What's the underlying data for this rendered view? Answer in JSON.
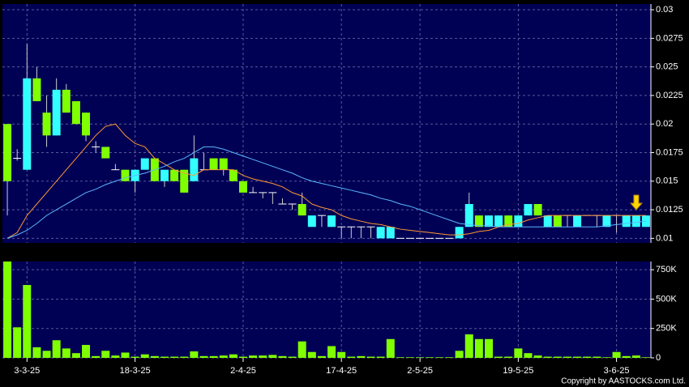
{
  "chart_data": [
    {
      "type": "candlestick",
      "categories": [
        null,
        null,
        "3-3-25",
        null,
        null,
        null,
        null,
        null,
        null,
        null,
        null,
        null,
        null,
        "18-3-25",
        null,
        null,
        null,
        null,
        null,
        null,
        null,
        null,
        null,
        null,
        "2-4-25",
        null,
        null,
        null,
        null,
        null,
        null,
        null,
        null,
        null,
        "17-4-25",
        null,
        null,
        null,
        null,
        null,
        null,
        null,
        "2-5-25",
        null,
        null,
        null,
        null,
        null,
        null,
        null,
        null,
        null,
        "19-5-25",
        null,
        null,
        null,
        null,
        null,
        null,
        null,
        null,
        null,
        "3-6-25",
        null,
        null,
        null
      ],
      "open": [
        0.02,
        0.017,
        0.016,
        0.024,
        0.021,
        0.019,
        0.023,
        0.022,
        0.021,
        0.018,
        0.018,
        0.016,
        0.016,
        0.015,
        0.016,
        0.017,
        0.015,
        0.016,
        0.016,
        0.015,
        0.016,
        0.017,
        0.017,
        0.016,
        0.015,
        0.014,
        0.014,
        0.014,
        0.013,
        0.013,
        0.013,
        0.011,
        0.012,
        0.011,
        0.011,
        0.011,
        0.011,
        0.011,
        0.01,
        0.01,
        0.01,
        0.01,
        0.01,
        0.01,
        0.01,
        0.01,
        0.01,
        0.011,
        0.012,
        0.011,
        0.011,
        0.012,
        0.011,
        0.012,
        0.013,
        0.011,
        0.012,
        0.012,
        0.011,
        0.012,
        0.012,
        0.011,
        0.012,
        0.011,
        0.011,
        0.011
      ],
      "high": [
        0.02,
        0.0178,
        0.027,
        0.025,
        0.0225,
        0.024,
        0.0235,
        0.022,
        0.021,
        0.0185,
        0.018,
        0.0165,
        0.016,
        0.016,
        0.017,
        0.017,
        0.016,
        0.016,
        0.016,
        0.019,
        0.0175,
        0.017,
        0.017,
        0.016,
        0.015,
        0.0145,
        0.014,
        0.014,
        0.0135,
        0.013,
        0.014,
        0.012,
        0.012,
        0.012,
        0.011,
        0.011,
        0.011,
        0.011,
        0.011,
        0.011,
        0.01,
        0.01,
        0.01,
        0.01,
        0.01,
        0.01,
        0.011,
        0.014,
        0.012,
        0.012,
        0.012,
        0.012,
        0.012,
        0.013,
        0.013,
        0.012,
        0.012,
        0.012,
        0.012,
        0.012,
        0.012,
        0.012,
        0.012,
        0.012,
        0.012,
        0.012
      ],
      "low": [
        0.012,
        0.0168,
        0.016,
        0.022,
        0.018,
        0.019,
        0.021,
        0.02,
        0.0185,
        0.0175,
        0.017,
        0.016,
        0.015,
        0.014,
        0.016,
        0.015,
        0.0145,
        0.015,
        0.014,
        0.015,
        0.016,
        0.016,
        0.0155,
        0.015,
        0.014,
        0.014,
        0.0135,
        0.013,
        0.013,
        0.0125,
        0.012,
        0.011,
        0.011,
        0.011,
        0.01,
        0.01,
        0.01,
        0.01,
        0.01,
        0.01,
        0.01,
        0.01,
        0.01,
        0.01,
        0.01,
        0.01,
        0.01,
        0.011,
        0.011,
        0.011,
        0.011,
        0.011,
        0.011,
        0.012,
        0.012,
        0.011,
        0.011,
        0.011,
        0.011,
        0.012,
        0.011,
        0.011,
        0.0105,
        0.011,
        0.011,
        0.011
      ],
      "close": [
        0.015,
        0.017,
        0.024,
        0.022,
        0.019,
        0.023,
        0.021,
        0.02,
        0.019,
        0.018,
        0.017,
        0.016,
        0.015,
        0.016,
        0.017,
        0.015,
        0.016,
        0.015,
        0.014,
        0.017,
        0.016,
        0.016,
        0.016,
        0.015,
        0.014,
        0.014,
        0.014,
        0.014,
        0.013,
        0.013,
        0.012,
        0.012,
        0.012,
        0.012,
        0.011,
        0.011,
        0.011,
        0.011,
        0.011,
        0.011,
        0.01,
        0.01,
        0.01,
        0.01,
        0.01,
        0.01,
        0.011,
        0.013,
        0.011,
        0.012,
        0.012,
        0.011,
        0.012,
        0.013,
        0.012,
        0.012,
        0.011,
        0.012,
        0.012,
        0.012,
        0.012,
        0.012,
        0.012,
        0.012,
        0.012,
        0.012
      ],
      "up_color": "#33ffff",
      "down_color": "#80ff00",
      "overlays": [
        {
          "color": "#ff9933",
          "values": [
            0.01,
            0.0105,
            0.012,
            0.013,
            0.014,
            0.015,
            0.016,
            0.017,
            0.018,
            0.019,
            0.0198,
            0.02,
            0.019,
            0.0183,
            0.018,
            0.017,
            0.0165,
            0.016,
            0.0157,
            0.0155,
            0.016,
            0.016,
            0.016,
            0.016,
            0.0155,
            0.0152,
            0.015,
            0.0148,
            0.0145,
            0.014,
            0.0137,
            0.013,
            0.0127,
            0.0125,
            0.012,
            0.0117,
            0.0115,
            0.0113,
            0.0112,
            0.011,
            0.0108,
            0.0107,
            0.0106,
            0.0105,
            0.0104,
            0.0103,
            0.0103,
            0.0104,
            0.0106,
            0.0107,
            0.011,
            0.0112,
            0.0113,
            0.0116,
            0.0118,
            0.012,
            0.012,
            0.012,
            0.012,
            0.012,
            0.012,
            0.012,
            0.012,
            0.012,
            0.012,
            0.012
          ]
        },
        {
          "color": "#5cb8ff",
          "values": [
            0.01,
            0.0103,
            0.0107,
            0.0113,
            0.012,
            0.0125,
            0.013,
            0.0135,
            0.014,
            0.0143,
            0.0147,
            0.015,
            0.0153,
            0.0155,
            0.0157,
            0.016,
            0.0163,
            0.0167,
            0.017,
            0.0175,
            0.018,
            0.018,
            0.0178,
            0.0175,
            0.0172,
            0.0169,
            0.0166,
            0.0163,
            0.016,
            0.0157,
            0.0153,
            0.015,
            0.0148,
            0.0146,
            0.0144,
            0.0142,
            0.014,
            0.0138,
            0.0135,
            0.0133,
            0.013,
            0.0128,
            0.0125,
            0.0122,
            0.0119,
            0.0116,
            0.0113,
            0.0112,
            0.0111,
            0.0111,
            0.011,
            0.011,
            0.011,
            0.011,
            0.011,
            0.011,
            0.011,
            0.011,
            0.011,
            0.011,
            0.011,
            0.0111,
            0.0112,
            0.0113,
            0.0114,
            0.0115
          ]
        }
      ],
      "ylim": [
        0.0096,
        0.0305
      ],
      "yticks": [
        0.01,
        0.0125,
        0.015,
        0.0175,
        0.02,
        0.0225,
        0.025,
        0.0275,
        0.03
      ],
      "grid": true
    },
    {
      "type": "bar",
      "values": [
        820000,
        260000,
        620000,
        90000,
        60000,
        150000,
        80000,
        40000,
        110000,
        15000,
        60000,
        20000,
        45000,
        10000,
        30000,
        15000,
        10000,
        10000,
        10000,
        55000,
        15000,
        15000,
        20000,
        30000,
        10000,
        20000,
        20000,
        25000,
        15000,
        10000,
        140000,
        50000,
        15000,
        100000,
        50000,
        10000,
        15000,
        10000,
        10000,
        160000,
        5000,
        5000,
        5000,
        5000,
        5000,
        5000,
        60000,
        200000,
        160000,
        160000,
        10000,
        10000,
        80000,
        40000,
        20000,
        10000,
        10000,
        10000,
        10000,
        10000,
        10000,
        5000,
        50000,
        15000,
        20000,
        5000
      ],
      "color": "#80ff00",
      "ylim": [
        0,
        820000
      ],
      "yticks": [
        0,
        {
          "value": 250000,
          "label": "250K"
        },
        {
          "value": 500000,
          "label": "500K"
        },
        {
          "value": 750000,
          "label": "750K"
        }
      ],
      "grid": true
    }
  ],
  "copyright": "Copyright by AASTOCKS.com Ltd."
}
